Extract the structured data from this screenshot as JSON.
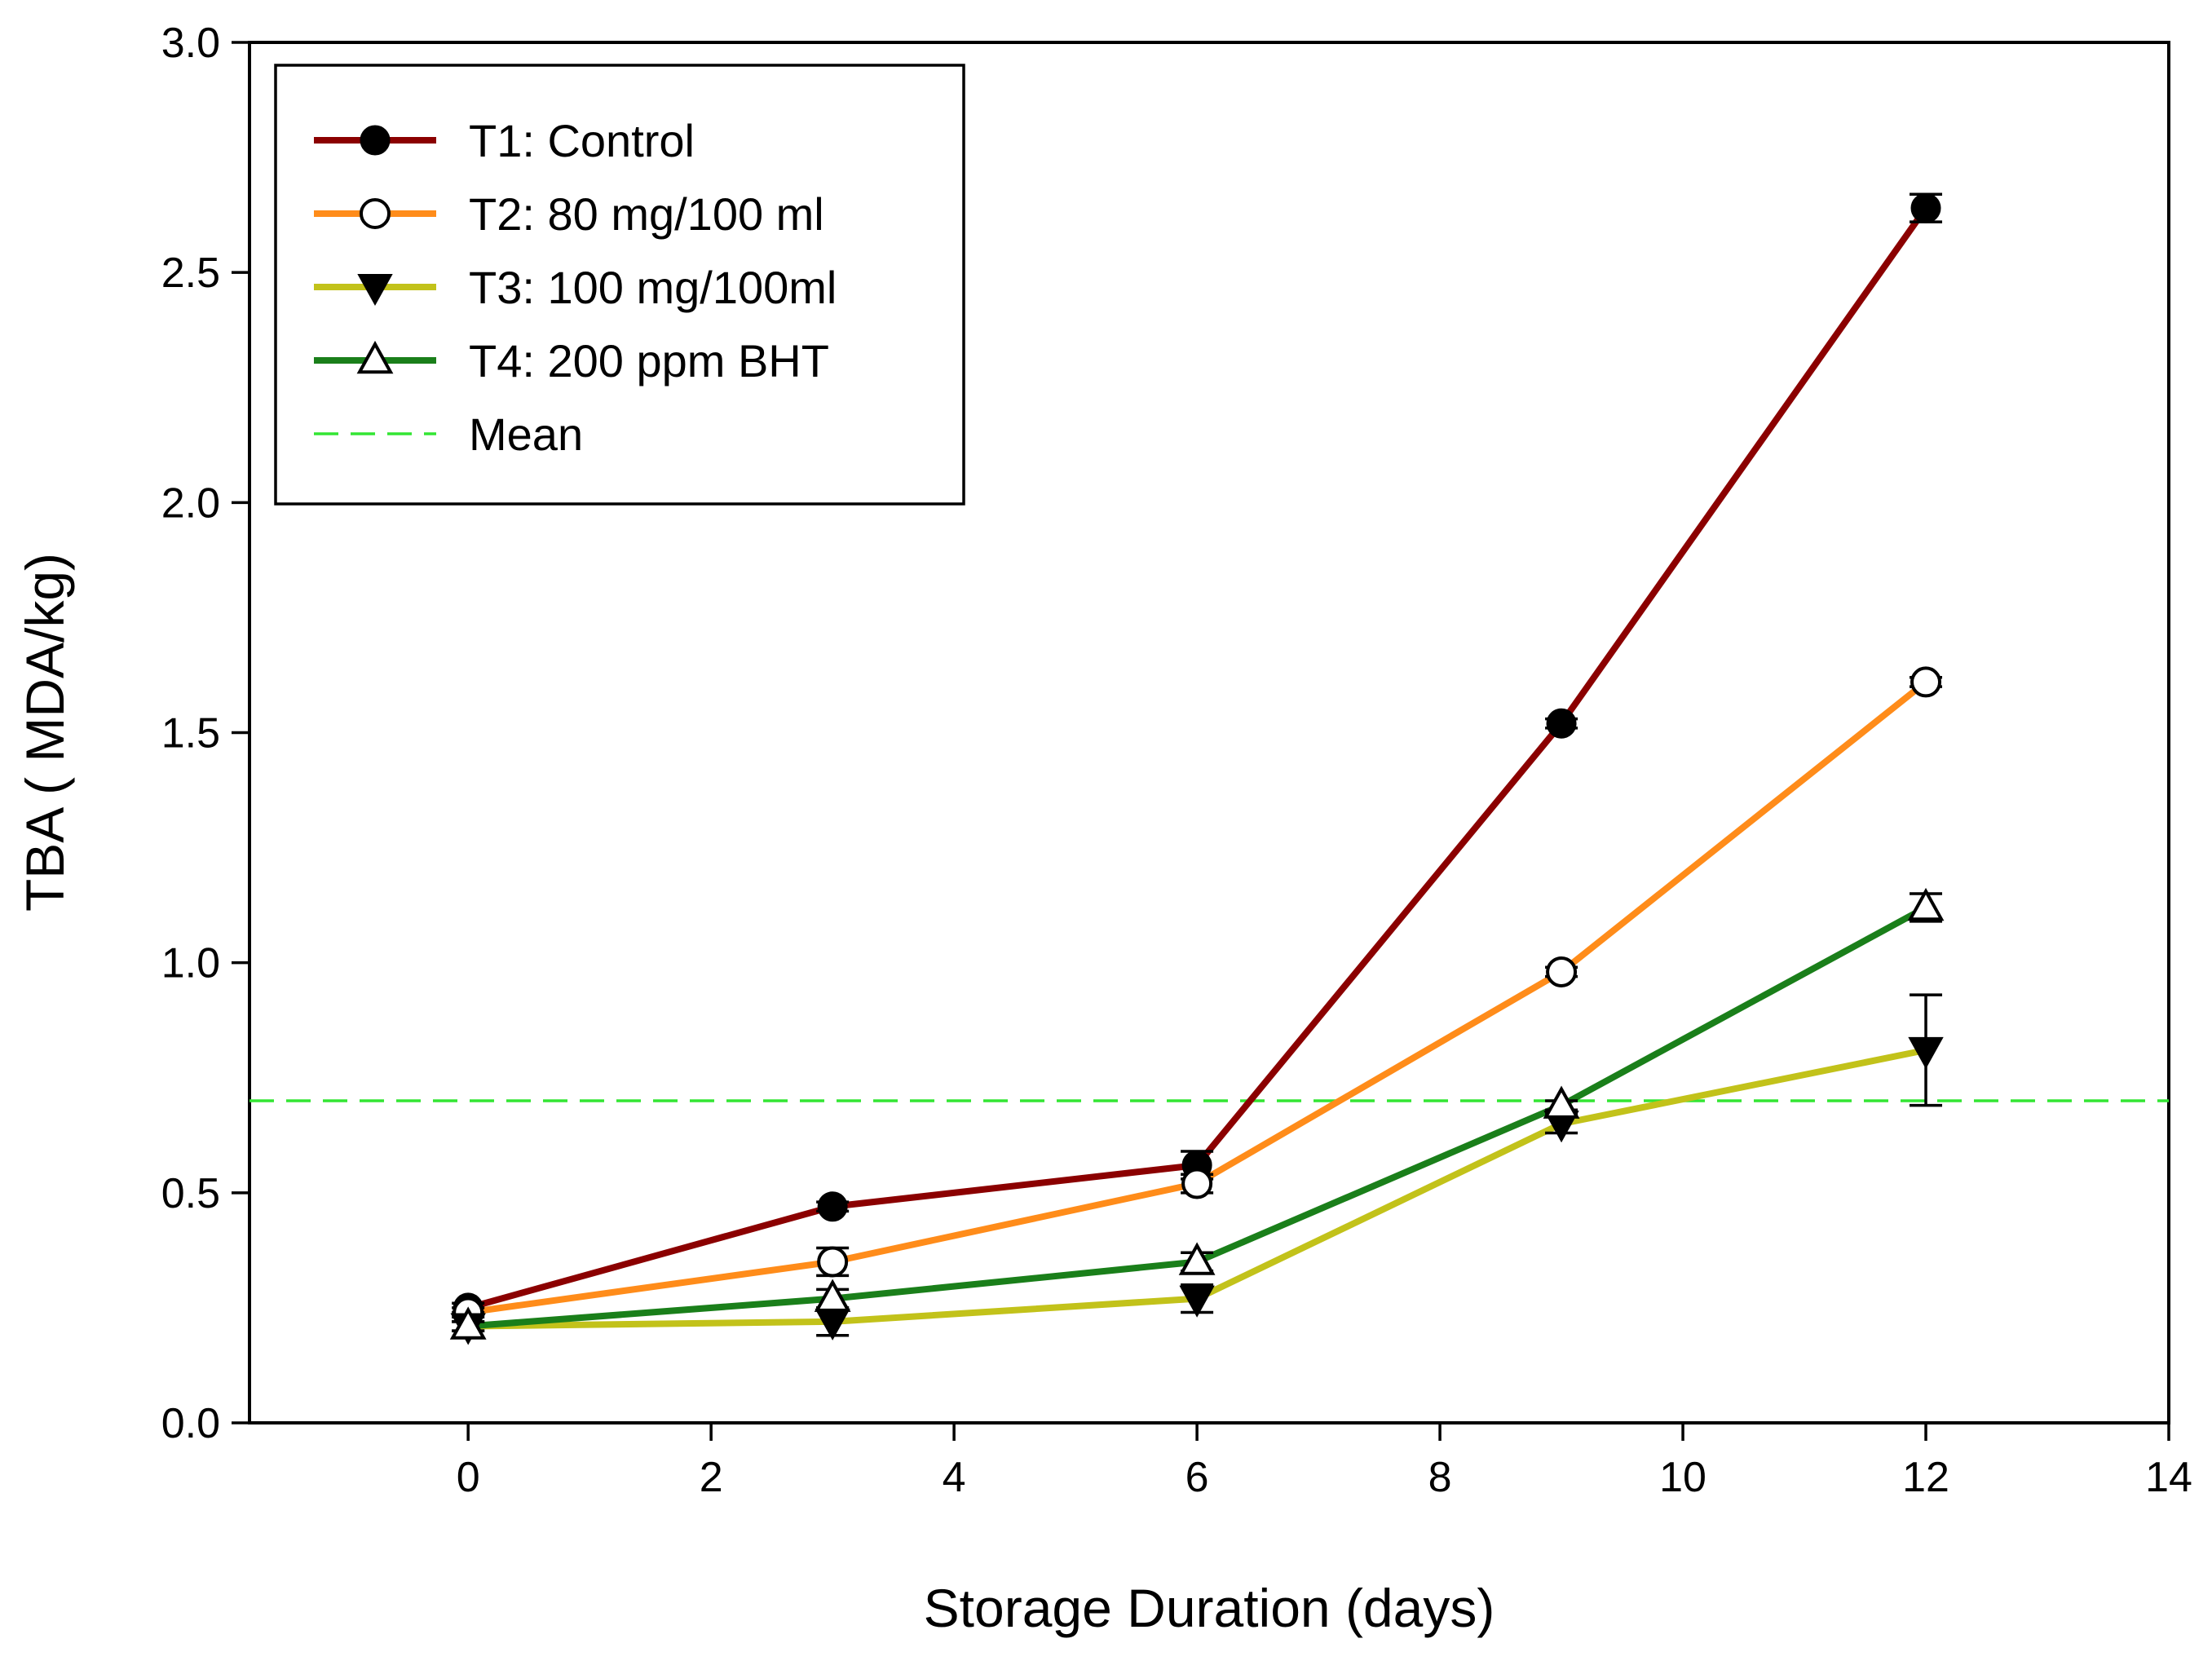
{
  "chart_data": {
    "type": "line",
    "title": "",
    "xlabel": "Storage Duration (days)",
    "ylabel": "TBA ( MDA/kg)",
    "xlim": [
      -1.8,
      14
    ],
    "ylim": [
      0,
      3.0
    ],
    "xticks": [
      0,
      2,
      4,
      6,
      8,
      10,
      12,
      14
    ],
    "yticks": [
      0.0,
      0.5,
      1.0,
      1.5,
      2.0,
      2.5,
      3.0
    ],
    "xtick_labels": [
      "0",
      "2",
      "4",
      "6",
      "8",
      "10",
      "12",
      "14"
    ],
    "ytick_labels": [
      "0.0",
      "0.5",
      "1.0",
      "1.5",
      "2.0",
      "2.5",
      "3.0"
    ],
    "grid": false,
    "legend_position": "top-left",
    "x": [
      0,
      3,
      6,
      9,
      12
    ],
    "series": [
      {
        "name": "T1: Control",
        "color": "#8B0000",
        "marker": "filled-circle",
        "values": [
          0.25,
          0.47,
          0.56,
          1.52,
          2.64
        ],
        "errors": [
          0.01,
          0.01,
          0.03,
          0.01,
          0.03
        ]
      },
      {
        "name": "T2: 80 mg/100 ml",
        "color": "#FF8C1A",
        "marker": "open-circle",
        "values": [
          0.24,
          0.35,
          0.52,
          0.98,
          1.61
        ],
        "errors": [
          0.01,
          0.03,
          0.02,
          0.01,
          0.01
        ]
      },
      {
        "name": "T3: 100 mg/100ml",
        "color": "#C2C21A",
        "marker": "filled-triangle-down",
        "values": [
          0.21,
          0.22,
          0.27,
          0.65,
          0.81
        ],
        "errors": [
          0.01,
          0.03,
          0.03,
          0.02,
          0.12
        ]
      },
      {
        "name": "T4: 200 ppm BHT",
        "color": "#1A7F1A",
        "marker": "open-triangle-up",
        "values": [
          0.21,
          0.27,
          0.35,
          0.69,
          1.12
        ],
        "errors": [
          0.01,
          0.02,
          0.02,
          0.01,
          0.03
        ]
      }
    ],
    "mean_line": {
      "name": "Mean",
      "value": 0.7,
      "color": "#33E633",
      "style": "dashed"
    }
  }
}
